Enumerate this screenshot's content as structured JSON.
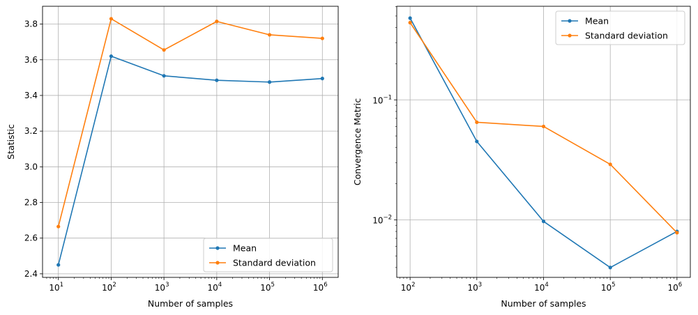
{
  "colors": {
    "mean": "#1f77b4",
    "std": "#ff7f0e",
    "grid": "#b0b0b0",
    "frame": "#000000"
  },
  "chart_data": [
    {
      "type": "line",
      "xscale": "log",
      "yscale": "linear",
      "xlim_exp": [
        0.7,
        6.3
      ],
      "ylim": [
        2.38,
        3.9
      ],
      "xlabel": "Number of samples",
      "ylabel": "Statistic",
      "grid": true,
      "legend_loc": "lower-right",
      "x": [
        10,
        100,
        1000,
        10000,
        100000,
        1000000
      ],
      "series": [
        {
          "name": "Mean",
          "values": [
            2.45,
            3.62,
            3.51,
            3.485,
            3.475,
            3.495
          ]
        },
        {
          "name": "Standard deviation",
          "values": [
            2.665,
            3.83,
            3.655,
            3.815,
            3.74,
            3.72
          ]
        }
      ],
      "xticks": [
        {
          "base": "10",
          "exp": "1"
        },
        {
          "base": "10",
          "exp": "2"
        },
        {
          "base": "10",
          "exp": "3"
        },
        {
          "base": "10",
          "exp": "4"
        },
        {
          "base": "10",
          "exp": "5"
        },
        {
          "base": "10",
          "exp": "6"
        }
      ],
      "yticks": [
        {
          "value": 2.4,
          "label": "2.4"
        },
        {
          "value": 2.6,
          "label": "2.6"
        },
        {
          "value": 2.8,
          "label": "2.8"
        },
        {
          "value": 3.0,
          "label": "3.0"
        },
        {
          "value": 3.2,
          "label": "3.2"
        },
        {
          "value": 3.4,
          "label": "3.4"
        },
        {
          "value": 3.6,
          "label": "3.6"
        },
        {
          "value": 3.8,
          "label": "3.8"
        }
      ]
    },
    {
      "type": "line",
      "xscale": "log",
      "yscale": "log",
      "xlim_exp": [
        1.8,
        6.2
      ],
      "ylim_exp": [
        -2.48,
        -0.22
      ],
      "xlabel": "Number of samples",
      "ylabel": "Convergence Metric",
      "grid": true,
      "legend_loc": "top-right",
      "x": [
        100,
        1000,
        10000,
        100000,
        1000000
      ],
      "series": [
        {
          "name": "Mean",
          "values": [
            0.48,
            0.045,
            0.0097,
            0.004,
            0.008
          ]
        },
        {
          "name": "Standard deviation",
          "values": [
            0.44,
            0.065,
            0.06,
            0.029,
            0.0078
          ]
        }
      ],
      "xticks": [
        {
          "base": "10",
          "exp": "2"
        },
        {
          "base": "10",
          "exp": "3"
        },
        {
          "base": "10",
          "exp": "4"
        },
        {
          "base": "10",
          "exp": "5"
        },
        {
          "base": "10",
          "exp": "6"
        }
      ],
      "yticks": [
        {
          "value": 0.01,
          "base": "10",
          "exp": "−2"
        },
        {
          "value": 0.1,
          "base": "10",
          "exp": "−1"
        }
      ]
    }
  ]
}
